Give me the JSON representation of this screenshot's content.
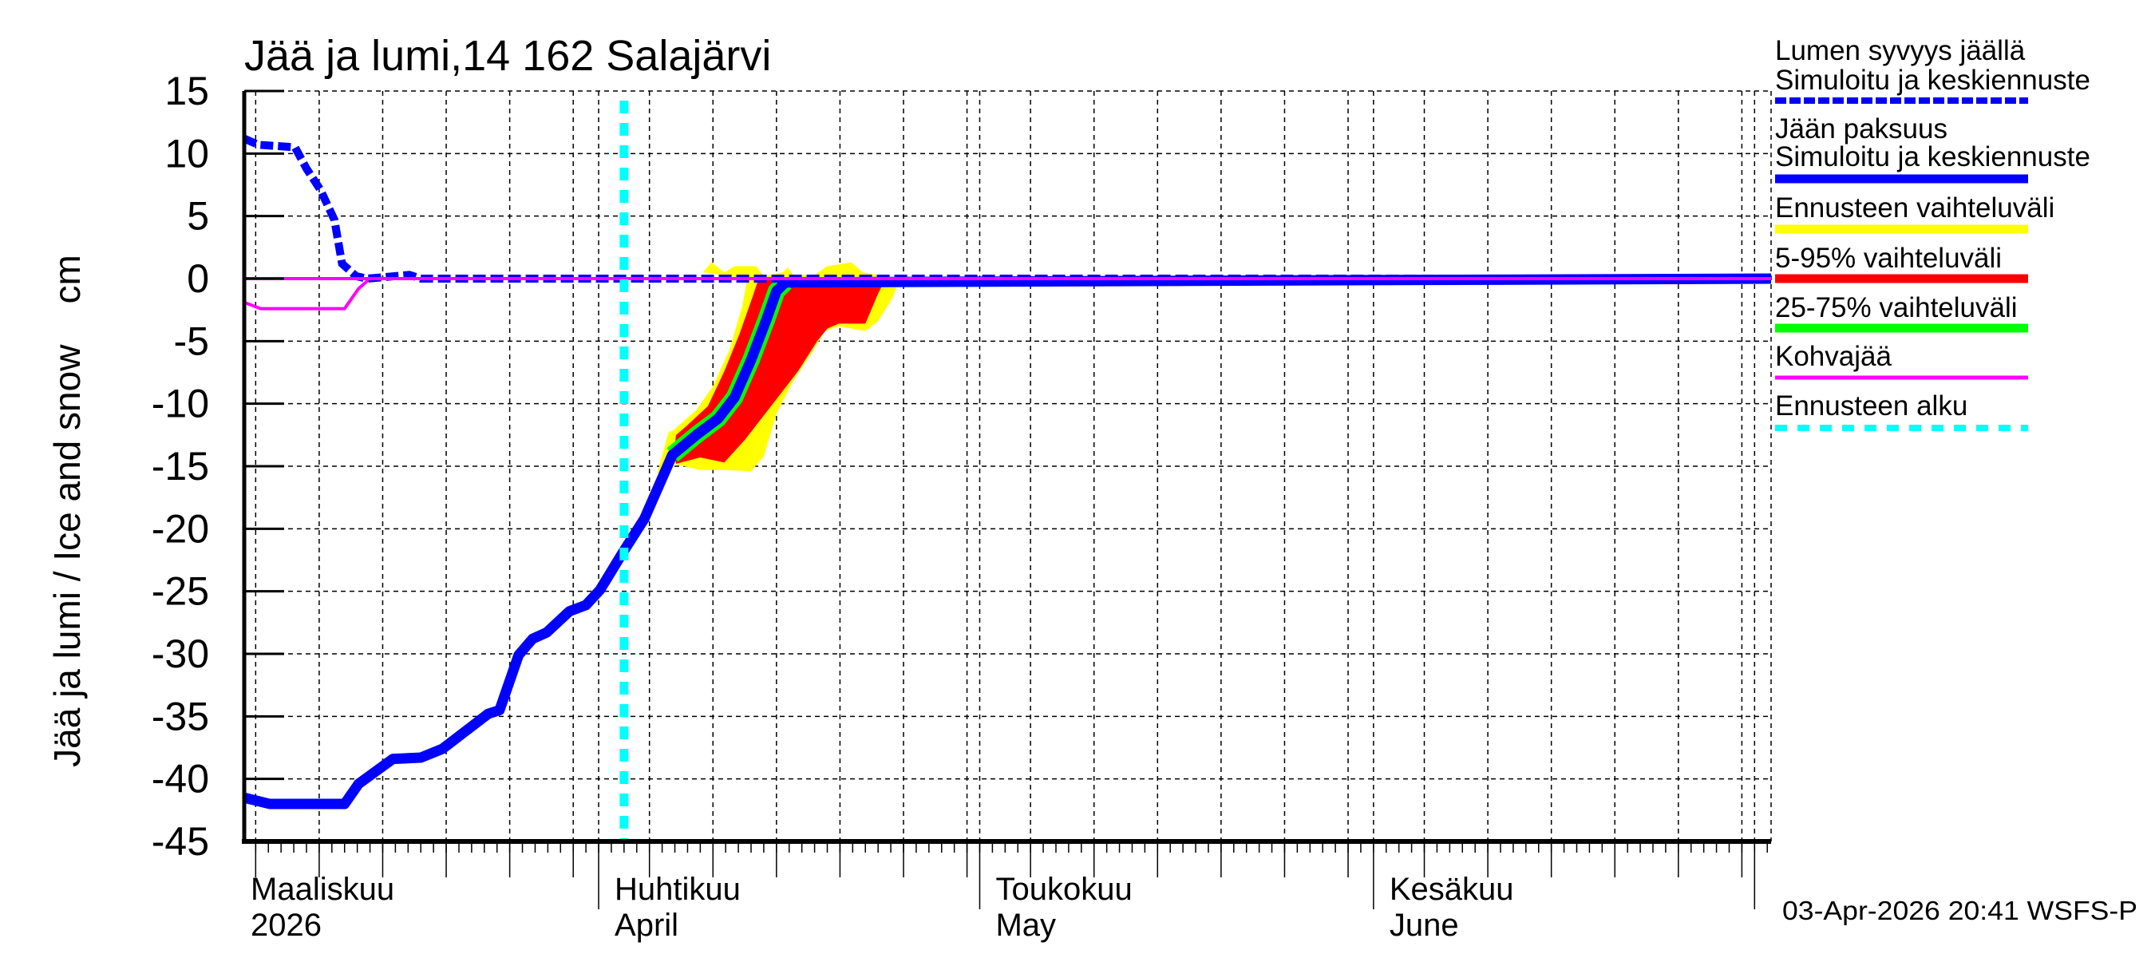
{
  "chart_data": {
    "type": "area",
    "title": "Jää ja lumi,14 162 Salajärvi",
    "ylabel": "Jää ja lumi / Ice and snow    cm",
    "xlabel": "",
    "x_unit": "days since 2026-03-01",
    "xlim": [
      3.1,
      123.3
    ],
    "ylim": [
      -45,
      15
    ],
    "yticks": [
      15,
      10,
      5,
      0,
      -5,
      -10,
      -15,
      -20,
      -25,
      -30,
      -35,
      -40,
      -45
    ],
    "ytick_labels": [
      "15",
      "10",
      "5",
      "0",
      "-5",
      "-10",
      "-15",
      "-20",
      "-25",
      "-30",
      "-35",
      "-40",
      "-45"
    ],
    "grid": true,
    "months": [
      {
        "day": 0,
        "line1": "Maaliskuu",
        "line2": "2026"
      },
      {
        "day": 31,
        "line1": "Huhtikuu",
        "line2": "April"
      },
      {
        "day": 61,
        "line1": "Toukokuu",
        "line2": "May"
      },
      {
        "day": 92,
        "line1": "Kesäkuu",
        "line2": "June"
      },
      {
        "day": 122,
        "line1": "",
        "line2": ""
      }
    ],
    "forecast_start_day": 33,
    "series": [
      {
        "name": "Lumen syvyys jäällä – Simuloitu ja keskiennuste",
        "color": "#0000ff",
        "style": "dashed",
        "x": [
          3.1,
          4.2,
          7.1,
          8.0,
          9.1,
          10.2,
          10.8,
          11.9,
          12.8,
          16.1,
          17.0,
          123.3
        ],
        "y": [
          11.2,
          10.7,
          10.5,
          8.8,
          7.1,
          4.7,
          1.2,
          0.2,
          0,
          0.3,
          0,
          0
        ]
      },
      {
        "name": "Jään paksuus – Simuloitu ja keskiennuste",
        "color": "#0000ff",
        "style": "solid",
        "x": [
          3.1,
          5.1,
          11.0,
          12.1,
          14.8,
          17.0,
          18.7,
          20.5,
          22.3,
          23.2,
          24.7,
          25.8,
          26.9,
          28.7,
          30.0,
          31.1,
          32.9,
          34.6,
          36.8,
          38.7,
          40.4,
          41.7,
          43.0,
          44.2,
          45.0,
          45.7,
          123.3
        ],
        "y": [
          -41.5,
          -42.0,
          -42.0,
          -40.4,
          -38.4,
          -38.3,
          -37.6,
          -36.2,
          -34.8,
          -34.5,
          -30.1,
          -28.8,
          -28.3,
          -26.6,
          -26.1,
          -24.9,
          -21.9,
          -19.2,
          -14.1,
          -12.5,
          -11.2,
          -9.5,
          -6.5,
          -3.3,
          -1.0,
          -0.3,
          0
        ]
      },
      {
        "name": "Kohvajää",
        "color": "#ff00ff",
        "style": "solid",
        "x": [
          3.1,
          4.4,
          11.0,
          12.1,
          13.0,
          123.3
        ],
        "y": [
          -1.9,
          -2.4,
          -2.4,
          -0.8,
          0,
          0
        ]
      }
    ],
    "bands": [
      {
        "name": "Ennusteen vaihteluväli",
        "color": "#ffff00",
        "upper": {
          "x": [
            35.6,
            36.5,
            36.9,
            38.7,
            40.0,
            41.3,
            42.3,
            42.7,
            39.2,
            39.9,
            40.9,
            41.7,
            43.4,
            44.0,
            45.5,
            45.9,
            46.3,
            48.0,
            49.0,
            50.9,
            51.8,
            54.7
          ],
          "y": [
            -15.6,
            -12.3,
            -12.1,
            -10.5,
            -8.6,
            -5.7,
            -2.2,
            0,
            0.5,
            1.3,
            0.5,
            1.0,
            1.0,
            0.2,
            0.5,
            0.9,
            0.3,
            0.3,
            1.0,
            1.3,
            0.5,
            0
          ]
        },
        "lower": {
          "x": [
            35.6,
            36.9,
            39.0,
            40.9,
            43.0,
            44.0,
            45.0,
            46.3,
            47.8,
            48.8,
            49.9,
            52.0,
            53.0,
            54.1,
            54.7
          ],
          "y": [
            -15.6,
            -14.8,
            -15.3,
            -15.3,
            -15.4,
            -14.2,
            -10.8,
            -8.2,
            -5.9,
            -4.2,
            -3.8,
            -4.2,
            -3.4,
            -1.6,
            0
          ]
        }
      },
      {
        "name": "5-95% vaihteluväli",
        "color": "#ff0000",
        "upper": {
          "x": [
            36.9,
            37.1,
            37.9,
            39.6,
            40.9,
            42.1,
            43.0,
            43.6,
            53.6
          ],
          "y": [
            -13.9,
            -12.5,
            -11.8,
            -10.2,
            -7.4,
            -4.4,
            -1.8,
            0,
            0
          ]
        },
        "lower": {
          "x": [
            36.9,
            37.1,
            39.0,
            40.9,
            42.5,
            44.8,
            46.7,
            48.2,
            49.0,
            49.9,
            52.0,
            53.0,
            53.6
          ],
          "y": [
            -13.9,
            -14.8,
            -14.3,
            -14.7,
            -12.9,
            -9.9,
            -7.4,
            -5.0,
            -4.0,
            -3.6,
            -3.6,
            -1.2,
            0
          ]
        }
      },
      {
        "name": "25-75% vaihteluväli",
        "color": "#00ff00",
        "around_series": "Jään paksuus – Simuloitu ja keskiennuste",
        "from_day": 36.8,
        "to_day": 46.5
      }
    ],
    "legend": {
      "placement": "right",
      "items": [
        {
          "line1": "Lumen syvyys jäällä",
          "line2": "Simuloitu ja keskiennuste",
          "color": "#0000ff",
          "style": "dashed"
        },
        {
          "line1": "Jään paksuus",
          "line2": "Simuloitu ja keskiennuste",
          "color": "#0000ff",
          "style": "thick"
        },
        {
          "line1": "Ennusteen vaihteluväli",
          "color": "#ffff00",
          "style": "thick"
        },
        {
          "line1": "5-95% vaihteluväli",
          "color": "#ff0000",
          "style": "thick"
        },
        {
          "line1": "25-75% vaihteluväli",
          "color": "#00ff00",
          "style": "thick"
        },
        {
          "line1": "Kohvajää",
          "color": "#ff00ff",
          "style": "thin"
        },
        {
          "line1": "Ennusteen alku",
          "color": "#00ffff",
          "style": "dotted"
        }
      ]
    },
    "footer": "03-Apr-2026 20:41 WSFS-P"
  }
}
